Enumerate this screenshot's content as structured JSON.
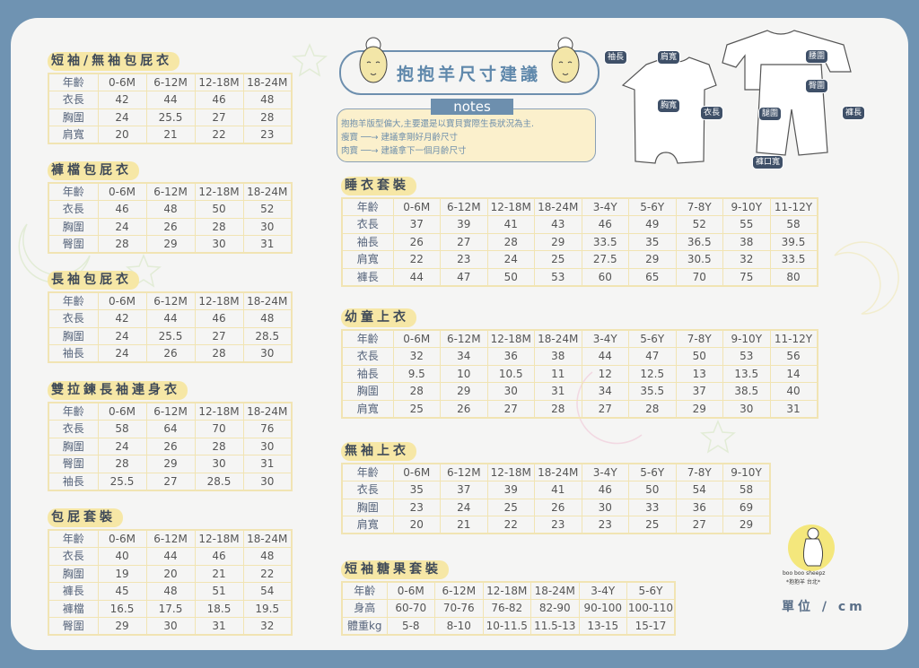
{
  "banner": {
    "title": "抱抱羊尺寸建議",
    "notes_label": "notes"
  },
  "notes": {
    "line1": "抱抱羊版型偏大,主要還是以寶貝實際生長狀況為主.",
    "line2": "瘦寶 ──→ 建議拿剛好月齡尺寸",
    "line3": "肉寶 ──→ 建議拿下一個月齡尺寸"
  },
  "diagram_labels": {
    "sleeve_length": "袖長",
    "shoulder_width": "肩寬",
    "chest_width": "胸寬",
    "body_length": "衣長",
    "waist": "腰圍",
    "hip": "臀圍",
    "thigh": "腿圍",
    "pants_length": "褲長",
    "hem_width": "褲口寬"
  },
  "brand": {
    "name_en": "boo boo sheepz",
    "name_zh": "*抱抱羊 台北*"
  },
  "unit": "單位 / cm",
  "colors": {
    "frame": "#6f93b2",
    "card": "#f5f5f4",
    "title_highlight": "#f6e7a6",
    "table_border": "#f1e4b3",
    "accent_blue": "#6d8fae"
  },
  "tables": [
    {
      "title": "短袖/無袖包屁衣",
      "header": [
        "年齡",
        "0-6M",
        "6-12M",
        "12-18M",
        "18-24M"
      ],
      "rows": [
        [
          "衣長",
          "42",
          "44",
          "46",
          "48"
        ],
        [
          "胸圍",
          "24",
          "25.5",
          "27",
          "28"
        ],
        [
          "肩寬",
          "20",
          "21",
          "22",
          "23"
        ]
      ]
    },
    {
      "title": "褲檔包屁衣",
      "header": [
        "年齡",
        "0-6M",
        "6-12M",
        "12-18M",
        "18-24M"
      ],
      "rows": [
        [
          "衣長",
          "46",
          "48",
          "50",
          "52"
        ],
        [
          "胸圍",
          "24",
          "26",
          "28",
          "30"
        ],
        [
          "臀圍",
          "28",
          "29",
          "30",
          "31"
        ]
      ]
    },
    {
      "title": "長袖包屁衣",
      "header": [
        "年齡",
        "0-6M",
        "6-12M",
        "12-18M",
        "18-24M"
      ],
      "rows": [
        [
          "衣長",
          "42",
          "44",
          "46",
          "48"
        ],
        [
          "胸圍",
          "24",
          "25.5",
          "27",
          "28.5"
        ],
        [
          "袖長",
          "24",
          "26",
          "28",
          "30"
        ]
      ]
    },
    {
      "title": "雙拉鍊長袖連身衣",
      "header": [
        "年齡",
        "0-6M",
        "6-12M",
        "12-18M",
        "18-24M"
      ],
      "rows": [
        [
          "衣長",
          "58",
          "64",
          "70",
          "76"
        ],
        [
          "胸圍",
          "24",
          "26",
          "28",
          "30"
        ],
        [
          "臀圍",
          "28",
          "29",
          "30",
          "31"
        ],
        [
          "袖長",
          "25.5",
          "27",
          "28.5",
          "30"
        ]
      ]
    },
    {
      "title": "包屁套裝",
      "header": [
        "年齡",
        "0-6M",
        "6-12M",
        "12-18M",
        "18-24M"
      ],
      "rows": [
        [
          "衣長",
          "40",
          "44",
          "46",
          "48"
        ],
        [
          "胸圍",
          "19",
          "20",
          "21",
          "22"
        ],
        [
          "褲長",
          "45",
          "48",
          "51",
          "54"
        ],
        [
          "褲檔",
          "16.5",
          "17.5",
          "18.5",
          "19.5"
        ],
        [
          "臀圍",
          "29",
          "30",
          "31",
          "32"
        ]
      ]
    },
    {
      "title": "睡衣套裝",
      "header": [
        "年齡",
        "0-6M",
        "6-12M",
        "12-18M",
        "18-24M",
        "3-4Y",
        "5-6Y",
        "7-8Y",
        "9-10Y",
        "11-12Y"
      ],
      "rows": [
        [
          "衣長",
          "37",
          "39",
          "41",
          "43",
          "46",
          "49",
          "52",
          "55",
          "58"
        ],
        [
          "袖長",
          "26",
          "27",
          "28",
          "29",
          "33.5",
          "35",
          "36.5",
          "38",
          "39.5"
        ],
        [
          "肩寬",
          "22",
          "23",
          "24",
          "25",
          "27.5",
          "29",
          "30.5",
          "32",
          "33.5"
        ],
        [
          "褲長",
          "44",
          "47",
          "50",
          "53",
          "60",
          "65",
          "70",
          "75",
          "80"
        ]
      ]
    },
    {
      "title": "幼童上衣",
      "header": [
        "年齡",
        "0-6M",
        "6-12M",
        "12-18M",
        "18-24M",
        "3-4Y",
        "5-6Y",
        "7-8Y",
        "9-10Y",
        "11-12Y"
      ],
      "rows": [
        [
          "衣長",
          "32",
          "34",
          "36",
          "38",
          "44",
          "47",
          "50",
          "53",
          "56"
        ],
        [
          "袖長",
          "9.5",
          "10",
          "10.5",
          "11",
          "12",
          "12.5",
          "13",
          "13.5",
          "14"
        ],
        [
          "胸圍",
          "28",
          "29",
          "30",
          "31",
          "34",
          "35.5",
          "37",
          "38.5",
          "40"
        ],
        [
          "肩寬",
          "25",
          "26",
          "27",
          "28",
          "27",
          "28",
          "29",
          "30",
          "31"
        ]
      ]
    },
    {
      "title": "無袖上衣",
      "header": [
        "年齡",
        "0-6M",
        "6-12M",
        "12-18M",
        "18-24M",
        "3-4Y",
        "5-6Y",
        "7-8Y",
        "9-10Y"
      ],
      "rows": [
        [
          "衣長",
          "35",
          "37",
          "39",
          "41",
          "46",
          "50",
          "54",
          "58"
        ],
        [
          "胸圍",
          "23",
          "24",
          "25",
          "26",
          "30",
          "33",
          "36",
          "69"
        ],
        [
          "肩寬",
          "20",
          "21",
          "22",
          "23",
          "23",
          "25",
          "27",
          "29"
        ]
      ]
    },
    {
      "title": "短袖糖果套裝",
      "header": [
        "年齡",
        "0-6M",
        "6-12M",
        "12-18M",
        "18-24M",
        "3-4Y",
        "5-6Y"
      ],
      "rows": [
        [
          "身高",
          "60-70",
          "70-76",
          "76-82",
          "82-90",
          "90-100",
          "100-110"
        ],
        [
          "體重kg",
          "5-8",
          "8-10",
          "10-11.5",
          "11.5-13",
          "13-15",
          "15-17"
        ]
      ]
    }
  ]
}
